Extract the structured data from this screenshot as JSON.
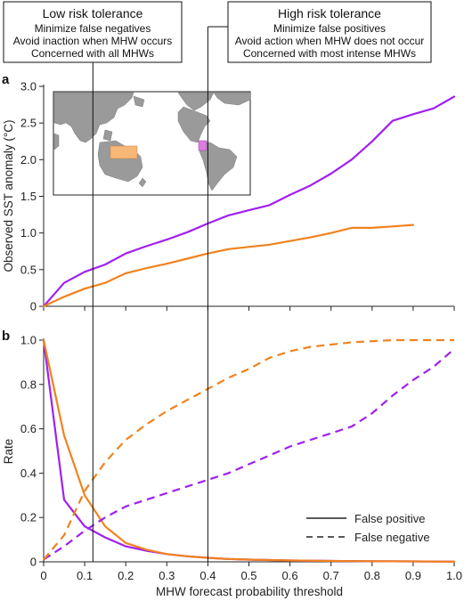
{
  "colors": {
    "purple": "#a020f0",
    "orange": "#f0821e",
    "land": "#9a9a9a",
    "ocean": "#ffffff",
    "axis": "#222222",
    "western_pacific_region": "#f7b877",
    "eastern_pacific_region": "#d87fe0"
  },
  "callouts": {
    "low": {
      "title": "Low risk tolerance",
      "lines": [
        "Minimize false negatives",
        "Avoid inaction when MHW occurs",
        "Concerned with all MHWs"
      ],
      "threshold": 0.12
    },
    "high": {
      "title": "High risk tolerance",
      "lines": [
        "Minimize false positives",
        "Avoid action when MHW does not occur",
        "Concerned with most intense MHWs"
      ],
      "threshold": 0.4
    }
  },
  "legend": {
    "solid_label": "False positive",
    "dashed_label": "False negative"
  },
  "map_inset": {
    "land_icon": "world-map-continents",
    "regions": [
      "western-pacific-region",
      "eastern-pacific-region"
    ]
  },
  "chart_data": [
    {
      "panel": "a",
      "type": "line",
      "xlabel": "",
      "ylabel": "Observed SST anomaly (°C)",
      "xlim": [
        0,
        1.0
      ],
      "ylim": [
        0,
        3.0
      ],
      "yticks": [
        "0",
        "0.5",
        "1.0",
        "1.5",
        "2.0",
        "2.5",
        "3.0"
      ],
      "grid": false,
      "series": [
        {
          "color": "purple",
          "style": "solid",
          "x": [
            0,
            0.05,
            0.1,
            0.15,
            0.2,
            0.25,
            0.3,
            0.35,
            0.4,
            0.45,
            0.5,
            0.55,
            0.6,
            0.65,
            0.7,
            0.75,
            0.8,
            0.85,
            0.9,
            0.95,
            1.0
          ],
          "y": [
            0,
            0.32,
            0.47,
            0.57,
            0.72,
            0.82,
            0.91,
            1.01,
            1.13,
            1.24,
            1.31,
            1.38,
            1.52,
            1.65,
            1.81,
            2.0,
            2.25,
            2.53,
            2.62,
            2.7,
            2.86
          ]
        },
        {
          "color": "orange",
          "style": "solid",
          "x": [
            0,
            0.05,
            0.1,
            0.15,
            0.2,
            0.25,
            0.3,
            0.35,
            0.4,
            0.45,
            0.5,
            0.55,
            0.6,
            0.65,
            0.7,
            0.75,
            0.8,
            0.85,
            0.9
          ],
          "y": [
            0,
            0.13,
            0.24,
            0.32,
            0.45,
            0.52,
            0.58,
            0.65,
            0.72,
            0.78,
            0.81,
            0.84,
            0.89,
            0.94,
            1.0,
            1.07,
            1.07,
            1.09,
            1.11
          ]
        }
      ]
    },
    {
      "panel": "b",
      "type": "line",
      "xlabel": "MHW forecast probability threshold",
      "ylabel": "Rate",
      "xlim": [
        0,
        1.0
      ],
      "ylim": [
        0,
        1.0
      ],
      "xticks": [
        "0",
        "0.1",
        "0.2",
        "0.3",
        "0.4",
        "0.5",
        "0.6",
        "0.7",
        "0.8",
        "0.9",
        "1.0"
      ],
      "yticks": [
        "0",
        "0.2",
        "0.4",
        "0.6",
        "0.8",
        "1.0"
      ],
      "grid": false,
      "legend_position": "bottom-right",
      "series": [
        {
          "name": "False positive",
          "color": "purple",
          "style": "solid",
          "x": [
            0,
            0.05,
            0.1,
            0.15,
            0.2,
            0.25,
            0.3,
            0.35,
            0.4,
            0.45,
            0.5,
            0.6,
            0.7,
            0.8,
            0.9,
            1.0
          ],
          "y": [
            1.0,
            0.28,
            0.16,
            0.11,
            0.07,
            0.05,
            0.035,
            0.025,
            0.018,
            0.013,
            0.01,
            0.006,
            0.004,
            0.003,
            0.002,
            0.001
          ]
        },
        {
          "name": "False positive",
          "color": "orange",
          "style": "solid",
          "x": [
            0,
            0.05,
            0.1,
            0.15,
            0.2,
            0.25,
            0.3,
            0.35,
            0.4,
            0.45,
            0.5,
            0.6,
            0.7,
            0.8,
            0.9,
            1.0
          ],
          "y": [
            1.0,
            0.57,
            0.3,
            0.16,
            0.085,
            0.055,
            0.035,
            0.025,
            0.018,
            0.013,
            0.01,
            0.006,
            0.004,
            0.003,
            0.002,
            0.001
          ]
        },
        {
          "name": "False negative",
          "color": "purple",
          "style": "dashed",
          "x": [
            0,
            0.05,
            0.1,
            0.15,
            0.2,
            0.25,
            0.3,
            0.35,
            0.4,
            0.45,
            0.5,
            0.55,
            0.6,
            0.65,
            0.7,
            0.75,
            0.8,
            0.85,
            0.9,
            0.95,
            1.0
          ],
          "y": [
            0.01,
            0.07,
            0.14,
            0.2,
            0.25,
            0.28,
            0.31,
            0.34,
            0.37,
            0.4,
            0.44,
            0.48,
            0.52,
            0.55,
            0.58,
            0.61,
            0.67,
            0.75,
            0.82,
            0.88,
            0.96
          ]
        },
        {
          "name": "False negative",
          "color": "orange",
          "style": "dashed",
          "x": [
            0,
            0.05,
            0.1,
            0.15,
            0.2,
            0.25,
            0.3,
            0.35,
            0.4,
            0.45,
            0.5,
            0.55,
            0.6,
            0.65,
            0.7,
            0.75,
            0.8,
            0.85,
            0.9,
            0.95,
            1.0
          ],
          "y": [
            0.01,
            0.12,
            0.32,
            0.45,
            0.55,
            0.62,
            0.68,
            0.73,
            0.78,
            0.83,
            0.87,
            0.92,
            0.95,
            0.97,
            0.98,
            0.99,
            0.995,
            1.0,
            1.0,
            1.0,
            1.0
          ]
        }
      ]
    }
  ]
}
